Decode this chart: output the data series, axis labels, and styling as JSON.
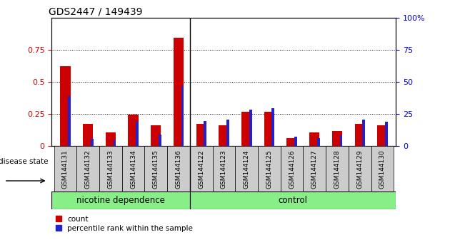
{
  "title": "GDS2447 / 149439",
  "categories": [
    "GSM144131",
    "GSM144132",
    "GSM144133",
    "GSM144134",
    "GSM144135",
    "GSM144136",
    "GSM144122",
    "GSM144123",
    "GSM144124",
    "GSM144125",
    "GSM144126",
    "GSM144127",
    "GSM144128",
    "GSM144129",
    "GSM144130"
  ],
  "red_values": [
    0.62,
    0.175,
    0.105,
    0.245,
    0.16,
    0.845,
    0.175,
    0.16,
    0.265,
    0.27,
    0.06,
    0.105,
    0.12,
    0.175,
    0.165
  ],
  "blue_values_pct": [
    39,
    5.5,
    4.5,
    19,
    9,
    46.5,
    19.5,
    20.5,
    28.5,
    29.5,
    7.5,
    6.5,
    8.5,
    20.5,
    19.0
  ],
  "ylim_left": [
    0,
    1.0
  ],
  "ylim_right": [
    0,
    100
  ],
  "yticks_left": [
    0,
    0.25,
    0.5,
    0.75
  ],
  "yticks_right": [
    0,
    25,
    50,
    75,
    100
  ],
  "group_labels": [
    "nicotine dependence",
    "control"
  ],
  "n_nicotine": 6,
  "n_control": 9,
  "disease_label": "disease state",
  "legend_red": "count",
  "legend_blue": "percentile rank within the sample",
  "bar_color_red": "#cc0000",
  "bar_color_blue": "#2222cc",
  "tick_color_left": "#cc0000",
  "tick_color_right": "#0000cc",
  "group_color": "#88ee88",
  "sample_box_color": "#cccccc",
  "red_bar_width": 0.45,
  "blue_bar_width": 0.12,
  "group_sep": 5.5
}
